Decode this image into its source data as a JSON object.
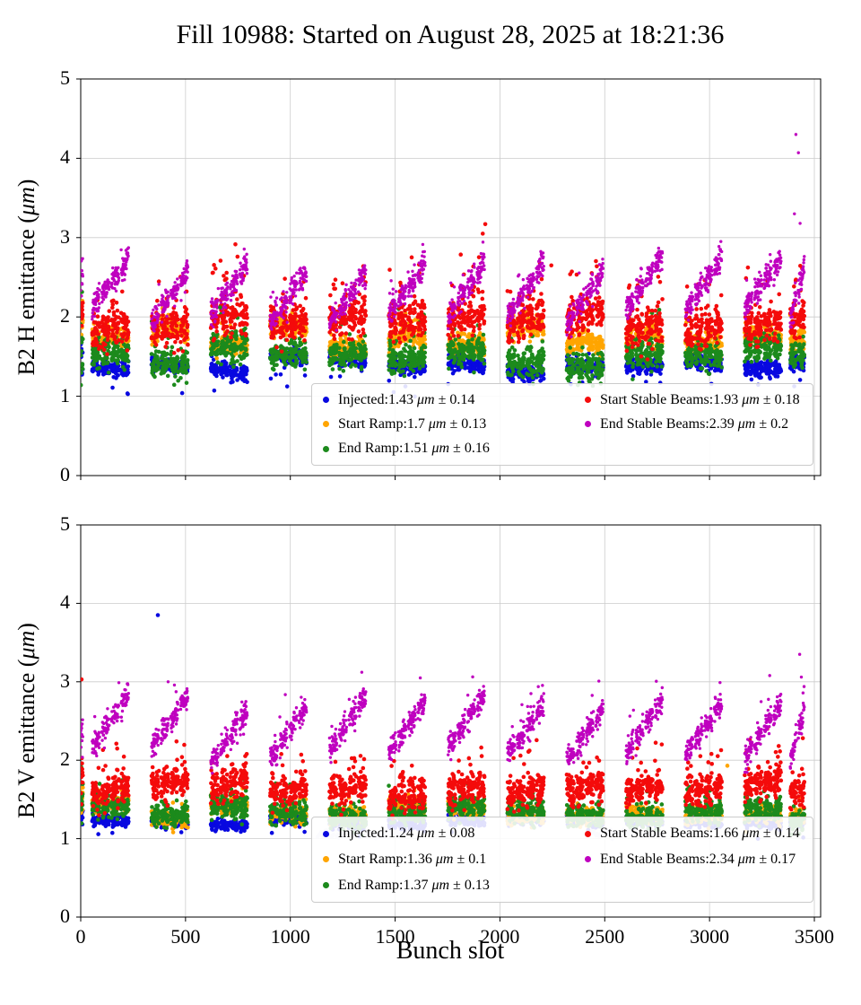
{
  "title": "Fill 10988: Started on August 28, 2025 at 18:21:36",
  "xlabel": "Bunch slot",
  "chart_data": [
    {
      "type": "scatter",
      "ylabel": "B2 H emittance (μm)",
      "xlim": [
        0,
        3530
      ],
      "ylim": [
        0,
        5
      ],
      "xticks": [
        0,
        500,
        1000,
        1500,
        2000,
        2500,
        3000,
        3500
      ],
      "xticklabels": [],
      "yticks": [
        0,
        1,
        2,
        3,
        4,
        5
      ],
      "grid": true,
      "legend_position": "lower center",
      "series": [
        {
          "name": "Injected",
          "legend_label": "Injected:1.43 μm ± 0.14",
          "mean": 1.43,
          "std": 0.14,
          "color": "#0808e0",
          "marker_size": 2.3,
          "sim": {
            "base": 1.41,
            "trend": -0.04,
            "noise": 0.05,
            "tj": 0.05,
            "tail": 0.02,
            "tailAmp": -0.22,
            "lead": [
              1.45,
              0.12
            ]
          }
        },
        {
          "name": "Start Ramp",
          "legend_label": "Start Ramp:1.7 μm ± 0.13",
          "mean": 1.7,
          "std": 0.13,
          "color": "#ffa500",
          "marker_size": 2.3,
          "sim": {
            "base": 1.7,
            "trend": 0,
            "arc": 0.16,
            "noise": 0.065,
            "tj": 0.07,
            "tail": 0.02,
            "tailAmp": 0.18,
            "lead": [
              2.0,
              0.12
            ]
          }
        },
        {
          "name": "End Ramp",
          "legend_label": "End Ramp:1.51 μm ± 0.16",
          "mean": 1.51,
          "std": 0.16,
          "color": "#1c8a1c",
          "marker_size": 2.3,
          "sim": {
            "base": 1.5,
            "trend": 0,
            "noise": 0.09,
            "tj": 0.07,
            "tail": 0.03,
            "tailAmp": 0.3,
            "lead": [
              1.6,
              0.25
            ]
          }
        },
        {
          "name": "Start Stable Beams",
          "legend_label": "Start Stable Beams:1.93 μm ± 0.18",
          "mean": 1.93,
          "std": 0.18,
          "color": "#f40b0b",
          "marker_size": 2.3,
          "sim": {
            "base": 1.88,
            "trend": 0.1,
            "noise": 0.12,
            "tj": 0.08,
            "tail": 0.06,
            "tailAmp": 0.45,
            "lead": [
              2.1,
              0.12
            ]
          }
        },
        {
          "name": "End Stable Beams",
          "legend_label": "End Stable Beams:2.39 μm ± 0.2",
          "mean": 2.39,
          "std": 0.2,
          "color": "#bf00bf",
          "marker_size": 1.7,
          "sim": {
            "base": 2.06,
            "trend": 0.58,
            "batch": 0.08,
            "noise": 0.08,
            "tj": 0.1,
            "tail": 0.02,
            "tailAmp": 0.25,
            "lead": [
              2.5,
              0.25
            ]
          }
        }
      ],
      "outliers": [
        {
          "series": "End Stable Beams",
          "x": 3412,
          "y": 4.3
        },
        {
          "series": "End Stable Beams",
          "x": 3424,
          "y": 4.07
        },
        {
          "series": "End Stable Beams",
          "x": 3405,
          "y": 3.3
        },
        {
          "series": "End Stable Beams",
          "x": 3432,
          "y": 3.18
        },
        {
          "series": "Start Stable Beams",
          "x": 1930,
          "y": 3.17
        },
        {
          "series": "Start Stable Beams",
          "x": 1918,
          "y": 3.05
        },
        {
          "series": "Start Stable Beams",
          "x": 748,
          "y": 2.76
        },
        {
          "series": "Start Stable Beams",
          "x": 2245,
          "y": 2.65
        },
        {
          "series": "End Ramp",
          "x": 665,
          "y": 2.12
        }
      ]
    },
    {
      "type": "scatter",
      "ylabel": "B2 V emittance (μm)",
      "xlim": [
        0,
        3530
      ],
      "ylim": [
        0,
        5
      ],
      "xticks": [
        0,
        500,
        1000,
        1500,
        2000,
        2500,
        3000,
        3500
      ],
      "xticklabels": [
        0,
        500,
        1000,
        1500,
        2000,
        2500,
        3000,
        3500
      ],
      "yticks": [
        0,
        1,
        2,
        3,
        4,
        5
      ],
      "grid": true,
      "legend_position": "lower center",
      "series": [
        {
          "name": "Injected",
          "legend_label": "Injected:1.24 μm ± 0.08",
          "mean": 1.24,
          "std": 0.08,
          "color": "#0808e0",
          "marker_size": 2.3,
          "sim": {
            "base": 1.22,
            "trend": -0.02,
            "noise": 0.035,
            "tj": 0.03,
            "tail": 0.008,
            "tailAmp": -0.12,
            "lead": [
              1.3,
              0.06
            ]
          }
        },
        {
          "name": "Start Ramp",
          "legend_label": "Start Ramp:1.36 μm ± 0.1",
          "mean": 1.36,
          "std": 0.1,
          "color": "#ffa500",
          "marker_size": 2.3,
          "sim": {
            "base": 1.34,
            "trend": 0,
            "noise": 0.055,
            "tj": 0.05,
            "tail": 0.01,
            "tailAmp": 0.15,
            "lead": [
              1.5,
              0.12
            ]
          }
        },
        {
          "name": "End Ramp",
          "legend_label": "End Ramp:1.37 μm ± 0.13",
          "mean": 1.37,
          "std": 0.13,
          "color": "#1c8a1c",
          "marker_size": 2.3,
          "sim": {
            "base": 1.36,
            "trend": 0,
            "noise": 0.075,
            "tj": 0.05,
            "tail": 0.02,
            "tailAmp": 0.2,
            "lead": [
              1.5,
              0.2
            ]
          }
        },
        {
          "name": "Start Stable Beams",
          "legend_label": "Start Stable Beams:1.66 μm ± 0.14",
          "mean": 1.66,
          "std": 0.14,
          "color": "#f40b0b",
          "marker_size": 2.3,
          "sim": {
            "base": 1.6,
            "trend": 0.1,
            "noise": 0.1,
            "tj": 0.06,
            "tail": 0.05,
            "tailAmp": 0.35,
            "lead": [
              1.8,
              0.15
            ]
          }
        },
        {
          "name": "End Stable Beams",
          "legend_label": "End Stable Beams:2.34 μm ± 0.17",
          "mean": 2.34,
          "std": 0.17,
          "color": "#bf00bf",
          "marker_size": 1.7,
          "sim": {
            "base": 2.04,
            "trend": 0.6,
            "batch": 0.08,
            "noise": 0.08,
            "tj": 0.1,
            "tail": 0.02,
            "tailAmp": 0.3,
            "lead": [
              2.4,
              0.15
            ]
          }
        }
      ],
      "faint_series": {
        "color": "#d9d9f3",
        "y_level": 1.06,
        "x_ranges": [
          [
            1130,
            1530
          ],
          [
            2420,
            2780
          ]
        ]
      },
      "outliers": [
        {
          "series": "Injected",
          "x": 368,
          "y": 3.85
        },
        {
          "series": "Start Stable Beams",
          "x": 4,
          "y": 3.03
        },
        {
          "series": "End Stable Beams",
          "x": 3430,
          "y": 3.35
        },
        {
          "series": "End Stable Beams",
          "x": 3438,
          "y": 3.06
        },
        {
          "series": "Start Ramp",
          "x": 3085,
          "y": 1.93
        }
      ]
    }
  ]
}
